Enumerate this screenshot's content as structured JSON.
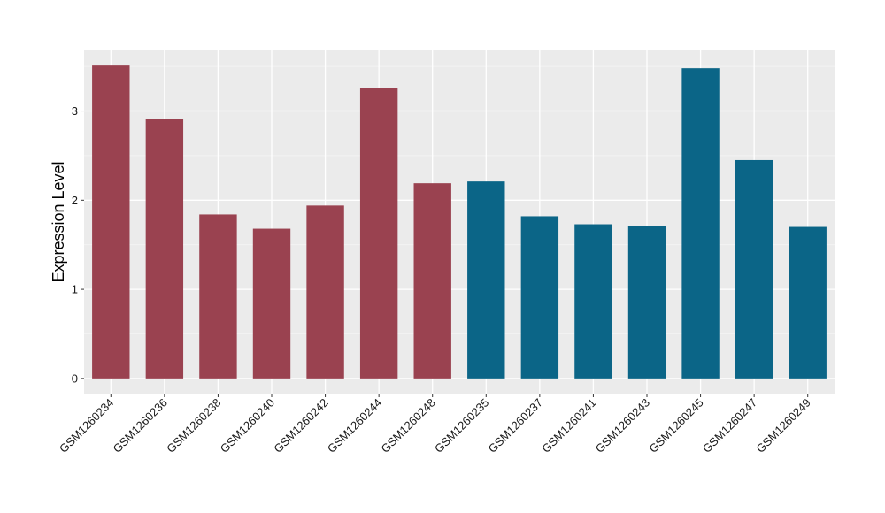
{
  "chart_data": {
    "type": "bar",
    "title": "",
    "xlabel": "",
    "ylabel": "Expression Level",
    "ylim": [
      -0.17,
      3.68
    ],
    "yticks": [
      0,
      1,
      2,
      3
    ],
    "grid": true,
    "legend": "none",
    "categories": [
      "GSM1260234",
      "GSM1260236",
      "GSM1260238",
      "GSM1260240",
      "GSM1260242",
      "GSM1260244",
      "GSM1260248",
      "GSM1260235",
      "GSM1260237",
      "GSM1260241",
      "GSM1260243",
      "GSM1260245",
      "GSM1260247",
      "GSM1260249"
    ],
    "values": [
      3.51,
      2.91,
      1.84,
      1.68,
      1.94,
      3.26,
      2.19,
      2.21,
      1.82,
      1.73,
      1.71,
      3.48,
      2.45,
      1.7
    ],
    "groups": [
      1,
      1,
      1,
      1,
      1,
      1,
      1,
      2,
      2,
      2,
      2,
      2,
      2,
      2
    ],
    "colors": {
      "group1": "#9A4250",
      "group2": "#0B6587",
      "panel": "#EBEBEB",
      "grid_major": "#FFFFFF",
      "grid_minor": "#F5F5F5"
    }
  }
}
